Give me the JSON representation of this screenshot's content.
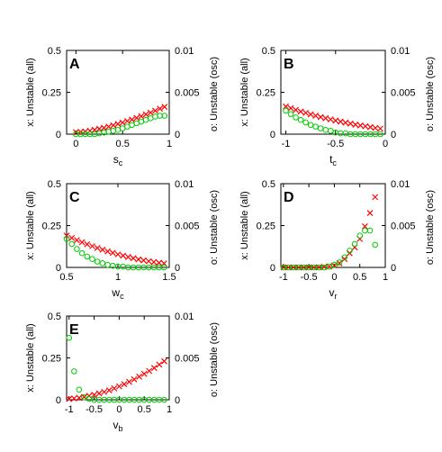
{
  "colors": {
    "all": "#ff0000",
    "osc": "#00cc00",
    "axis": "#000000"
  },
  "markers": {
    "all": "x",
    "osc": "o"
  },
  "chart_data": [
    {
      "type": "scatter",
      "letter": "A",
      "xlabel": "s",
      "xlabel_sub": "c",
      "ylabel_left": "x: Unstable (all)",
      "ylabel_right": "o: Unstable (osc)",
      "xlim": [
        -0.1,
        1
      ],
      "xticks": [
        0,
        0.5,
        1
      ],
      "xtick_labels": [
        "0",
        "0.5",
        "1"
      ],
      "ylim_left": [
        0,
        0.5
      ],
      "yticks_left": [
        "0",
        "0.25",
        "0.5"
      ],
      "ylim_right": [
        0,
        0.01
      ],
      "yticks_right": [
        "0",
        "0.005",
        "0.01"
      ],
      "series": [
        {
          "marker": "x",
          "axis": "left",
          "x": [
            0,
            0.05,
            0.1,
            0.15,
            0.2,
            0.25,
            0.3,
            0.35,
            0.4,
            0.45,
            0.5,
            0.55,
            0.6,
            0.65,
            0.7,
            0.75,
            0.8,
            0.85,
            0.9,
            0.95
          ],
          "y": [
            0.012,
            0.014,
            0.016,
            0.02,
            0.026,
            0.032,
            0.038,
            0.045,
            0.053,
            0.061,
            0.069,
            0.078,
            0.087,
            0.097,
            0.107,
            0.118,
            0.128,
            0.14,
            0.152,
            0.163
          ]
        },
        {
          "marker": "o",
          "axis": "right",
          "x": [
            0,
            0.05,
            0.1,
            0.15,
            0.2,
            0.25,
            0.3,
            0.35,
            0.4,
            0.45,
            0.5,
            0.55,
            0.6,
            0.65,
            0.7,
            0.75,
            0.8,
            0.85,
            0.9,
            0.95
          ],
          "y": [
            0,
            0,
            0,
            0,
            0,
            0.0001,
            0.0002,
            0.0003,
            0.0004,
            0.0005,
            0.0007,
            0.0009,
            0.0011,
            0.0013,
            0.0015,
            0.0017,
            0.0019,
            0.0021,
            0.0022,
            0.0022
          ]
        }
      ]
    },
    {
      "type": "scatter",
      "letter": "B",
      "xlabel": "t",
      "xlabel_sub": "c",
      "ylabel_left": "x: Unstable (all)",
      "ylabel_right": "o: Unstable (osc)",
      "xlim": [
        -1.05,
        0
      ],
      "xticks": [
        -1,
        -0.5,
        0
      ],
      "xtick_labels": [
        "-1",
        "-0.5",
        "0"
      ],
      "ylim_left": [
        0,
        0.5
      ],
      "yticks_left": [
        "0",
        "0.25",
        "0.5"
      ],
      "ylim_right": [
        0,
        0.01
      ],
      "yticks_right": [
        "0",
        "0.005",
        "0.01"
      ],
      "series": [
        {
          "marker": "x",
          "axis": "left",
          "x": [
            -1,
            -0.95,
            -0.9,
            -0.85,
            -0.8,
            -0.75,
            -0.7,
            -0.65,
            -0.6,
            -0.55,
            -0.5,
            -0.45,
            -0.4,
            -0.35,
            -0.3,
            -0.25,
            -0.2,
            -0.15,
            -0.1,
            -0.05
          ],
          "y": [
            0.165,
            0.155,
            0.145,
            0.135,
            0.127,
            0.118,
            0.11,
            0.102,
            0.095,
            0.088,
            0.081,
            0.075,
            0.069,
            0.063,
            0.057,
            0.052,
            0.047,
            0.042,
            0.037,
            0.033
          ]
        },
        {
          "marker": "o",
          "axis": "right",
          "x": [
            -1,
            -0.95,
            -0.9,
            -0.85,
            -0.8,
            -0.75,
            -0.7,
            -0.65,
            -0.6,
            -0.55,
            -0.5,
            -0.45,
            -0.4,
            -0.35,
            -0.3,
            -0.25,
            -0.2,
            -0.15,
            -0.1,
            -0.05
          ],
          "y": [
            0.0028,
            0.0024,
            0.002,
            0.0017,
            0.0014,
            0.0011,
            0.0009,
            0.0007,
            0.0005,
            0.0004,
            0.0002,
            0.0001,
            0.0001,
            0,
            0,
            0,
            0,
            0,
            0,
            0
          ]
        }
      ]
    },
    {
      "type": "scatter",
      "letter": "C",
      "xlabel": "w",
      "xlabel_sub": "c",
      "ylabel_left": "x: Unstable (all)",
      "ylabel_right": "o: Unstable (osc)",
      "xlim": [
        0.5,
        1.5
      ],
      "xticks": [
        0.5,
        1,
        1.5
      ],
      "xtick_labels": [
        "0.5",
        "1",
        "1.5"
      ],
      "ylim_left": [
        0,
        0.5
      ],
      "yticks_left": [
        "0",
        "0.25",
        "0.5"
      ],
      "ylim_right": [
        0,
        0.01
      ],
      "yticks_right": [
        "0",
        "0.005",
        "0.01"
      ],
      "series": [
        {
          "marker": "x",
          "axis": "left",
          "x": [
            0.5,
            0.55,
            0.6,
            0.65,
            0.7,
            0.75,
            0.8,
            0.85,
            0.9,
            0.95,
            1.0,
            1.05,
            1.1,
            1.15,
            1.2,
            1.25,
            1.3,
            1.35,
            1.4,
            1.45
          ],
          "y": [
            0.19,
            0.176,
            0.163,
            0.15,
            0.138,
            0.127,
            0.116,
            0.106,
            0.096,
            0.087,
            0.078,
            0.07,
            0.062,
            0.055,
            0.048,
            0.042,
            0.037,
            0.032,
            0.028,
            0.024
          ]
        },
        {
          "marker": "o",
          "axis": "right",
          "x": [
            0.5,
            0.55,
            0.6,
            0.65,
            0.7,
            0.75,
            0.8,
            0.85,
            0.9,
            0.95,
            1.0,
            1.05,
            1.1,
            1.15,
            1.2,
            1.25,
            1.3,
            1.35,
            1.4,
            1.45
          ],
          "y": [
            0.0034,
            0.0028,
            0.0022,
            0.0017,
            0.0013,
            0.001,
            0.0007,
            0.0005,
            0.0003,
            0.0002,
            0.0001,
            0.0001,
            0,
            0,
            0,
            0,
            0,
            0,
            0,
            0
          ]
        }
      ]
    },
    {
      "type": "scatter",
      "letter": "D",
      "xlabel": "v",
      "xlabel_sub": "r",
      "ylabel_left": "x: Unstable (all)",
      "ylabel_right": "o: Unstable (osc)",
      "xlim": [
        -1.05,
        1
      ],
      "xticks": [
        -1,
        -0.5,
        0,
        0.5,
        1
      ],
      "xtick_labels": [
        "-1",
        "-0.5",
        "0",
        "0.5",
        "1"
      ],
      "ylim_left": [
        0,
        0.5
      ],
      "yticks_left": [
        "0",
        "0.25",
        "0.5"
      ],
      "ylim_right": [
        0,
        0.01
      ],
      "yticks_right": [
        "0",
        "0.005",
        "0.01"
      ],
      "series": [
        {
          "marker": "x",
          "axis": "left",
          "x": [
            -1,
            -0.9,
            -0.8,
            -0.7,
            -0.6,
            -0.5,
            -0.4,
            -0.3,
            -0.2,
            -0.1,
            0,
            0.1,
            0.2,
            0.3,
            0.4,
            0.5,
            0.6,
            0.7,
            0.8
          ],
          "y": [
            0,
            0,
            0,
            0,
            0,
            0,
            0,
            0.001,
            0.003,
            0.006,
            0.012,
            0.025,
            0.05,
            0.085,
            0.12,
            0.17,
            0.245,
            0.325,
            0.42
          ]
        },
        {
          "marker": "o",
          "axis": "right",
          "x": [
            -1,
            -0.9,
            -0.8,
            -0.7,
            -0.6,
            -0.5,
            -0.4,
            -0.3,
            -0.2,
            -0.1,
            0,
            0.1,
            0.2,
            0.3,
            0.4,
            0.5,
            0.6,
            0.7,
            0.8
          ],
          "y": [
            0,
            0,
            0,
            0,
            0,
            0,
            0,
            0,
            0,
            0.0001,
            0.0003,
            0.0006,
            0.0012,
            0.002,
            0.0028,
            0.0038,
            0.0044,
            0.0044,
            0.0027
          ]
        }
      ]
    },
    {
      "type": "scatter",
      "letter": "E",
      "xlabel": "v",
      "xlabel_sub": "b",
      "ylabel_left": "x: Unstable (all)",
      "ylabel_right": "o: Unstable (osc)",
      "xlim": [
        -1.05,
        1
      ],
      "xticks": [
        -1,
        -0.5,
        0,
        0.5,
        1
      ],
      "xtick_labels": [
        "-1",
        "-0.5",
        "0",
        "0.5",
        "1"
      ],
      "ylim_left": [
        0,
        0.5
      ],
      "yticks_left": [
        "0",
        "0.25",
        "0.5"
      ],
      "ylim_right": [
        0,
        0.01
      ],
      "yticks_right": [
        "0",
        "0.005",
        "0.01"
      ],
      "series": [
        {
          "marker": "x",
          "axis": "left",
          "x": [
            -1,
            -0.9,
            -0.8,
            -0.7,
            -0.6,
            -0.5,
            -0.4,
            -0.3,
            -0.2,
            -0.1,
            0,
            0.1,
            0.2,
            0.3,
            0.4,
            0.5,
            0.6,
            0.7,
            0.8,
            0.9
          ],
          "y": [
            0.005,
            0.008,
            0.012,
            0.017,
            0.023,
            0.03,
            0.038,
            0.047,
            0.057,
            0.068,
            0.08,
            0.093,
            0.107,
            0.122,
            0.138,
            0.155,
            0.172,
            0.19,
            0.21,
            0.23
          ]
        },
        {
          "marker": "o",
          "axis": "right",
          "x": [
            -1,
            -0.9,
            -0.8,
            -0.7,
            -0.6,
            -0.5,
            -0.4,
            -0.3,
            -0.2,
            -0.1,
            0,
            0.1,
            0.2,
            0.3,
            0.4,
            0.5,
            0.6,
            0.7,
            0.8,
            0.9
          ],
          "y": [
            0.0074,
            0.0034,
            0.0012,
            0.0003,
            0.0001,
            0,
            0,
            0,
            0,
            0,
            0,
            0,
            0,
            0,
            0,
            0,
            0,
            0,
            0,
            0
          ]
        }
      ]
    }
  ]
}
